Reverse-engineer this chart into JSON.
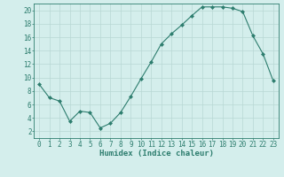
{
  "x": [
    0,
    1,
    2,
    3,
    4,
    5,
    6,
    7,
    8,
    9,
    10,
    11,
    12,
    13,
    14,
    15,
    16,
    17,
    18,
    19,
    20,
    21,
    22,
    23
  ],
  "y": [
    9,
    7,
    6.5,
    3.5,
    5,
    4.8,
    2.5,
    3.2,
    4.8,
    7.2,
    9.8,
    12.3,
    15,
    16.5,
    17.8,
    19.2,
    20.5,
    20.5,
    20.5,
    20.3,
    19.8,
    16.2,
    13.5,
    9.5
  ],
  "line_color": "#2d7d6e",
  "marker": "D",
  "marker_size": 2.0,
  "bg_color": "#d4eeec",
  "grid_color": "#b8d8d5",
  "xlabel": "Humidex (Indice chaleur)",
  "xlim": [
    -0.5,
    23.5
  ],
  "ylim": [
    1,
    21
  ],
  "yticks": [
    2,
    4,
    6,
    8,
    10,
    12,
    14,
    16,
    18,
    20
  ],
  "xticks": [
    0,
    1,
    2,
    3,
    4,
    5,
    6,
    7,
    8,
    9,
    10,
    11,
    12,
    13,
    14,
    15,
    16,
    17,
    18,
    19,
    20,
    21,
    22,
    23
  ],
  "tick_color": "#2d7d6e",
  "label_fontsize": 6.5,
  "tick_fontsize": 5.5
}
